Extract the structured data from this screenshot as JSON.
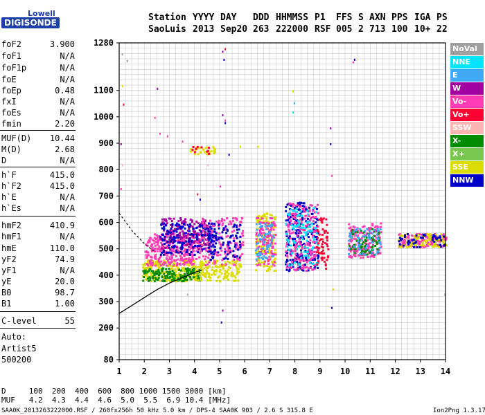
{
  "logo": {
    "top": "Lowell",
    "bottom": "DIGISONDE"
  },
  "header": {
    "row1": [
      "Station",
      "YYYY",
      "DAY",
      "DDD",
      "HHMMSS",
      "P1",
      "FFS",
      "S",
      "AXN",
      "PPS",
      "IGA",
      "PS"
    ],
    "row2": [
      "SaoLuis",
      "2013",
      "Sep20",
      "263",
      "222000",
      "RSF",
      "005",
      "2",
      "713",
      "100",
      "10+",
      "22"
    ]
  },
  "params": {
    "group1": [
      {
        "name": "foF2",
        "value": "3.900"
      },
      {
        "name": "foF1",
        "value": "N/A"
      },
      {
        "name": "foF1p",
        "value": "N/A"
      },
      {
        "name": "foE",
        "value": "N/A"
      },
      {
        "name": "foEp",
        "value": "0.48"
      },
      {
        "name": "fxI",
        "value": "N/A"
      },
      {
        "name": "foEs",
        "value": "N/A"
      },
      {
        "name": "fmin",
        "value": "2.20"
      }
    ],
    "group2": [
      {
        "name": "MUF(D)",
        "value": "10.44"
      },
      {
        "name": "M(D)",
        "value": "2.68"
      },
      {
        "name": "D",
        "value": "N/A"
      }
    ],
    "group3": [
      {
        "name": "h`F",
        "value": "415.0"
      },
      {
        "name": "h`F2",
        "value": "415.0"
      },
      {
        "name": "h`E",
        "value": "N/A"
      },
      {
        "name": "h`Es",
        "value": "N/A"
      }
    ],
    "group4": [
      {
        "name": "hmF2",
        "value": "410.9"
      },
      {
        "name": "hmF1",
        "value": "N/A"
      },
      {
        "name": "hmE",
        "value": "110.0"
      },
      {
        "name": "yF2",
        "value": "74.9"
      },
      {
        "name": "yF1",
        "value": "N/A"
      },
      {
        "name": "yE",
        "value": "20.0"
      },
      {
        "name": "B0",
        "value": "98.7"
      },
      {
        "name": "B1",
        "value": "1.00"
      }
    ],
    "clevel": {
      "name": "C-level",
      "value": "55"
    },
    "auto": [
      "Auto:",
      "Artist5",
      "500200"
    ]
  },
  "legend": [
    {
      "label": "NoVal",
      "color": "#a0a0a0"
    },
    {
      "label": "NNE",
      "color": "#00e5ff"
    },
    {
      "label": "E",
      "color": "#3fa9f5"
    },
    {
      "label": "W",
      "color": "#a000a0"
    },
    {
      "label": "Vo-",
      "color": "#ff3cb4"
    },
    {
      "label": "Vo+",
      "color": "#ff0032"
    },
    {
      "label": "SSW",
      "color": "#ffb4b4"
    },
    {
      "label": "X-",
      "color": "#008c00"
    },
    {
      "label": "X+",
      "color": "#78c850"
    },
    {
      "label": "SSE",
      "color": "#dcdc00"
    },
    {
      "label": "NNW",
      "color": "#0000c8"
    }
  ],
  "footer": {
    "d_row": "D     100  200  400  600  800 1000 1500 3000 [km]",
    "muf_row": "MUF   4.2  4.3  4.4  4.6  5.0  5.5  6.9 10.4 [MHz]",
    "file_info": "SAA0K_2013263222000.RSF / 260fx256h 50 kHz 5.0 km / DPS-4 SAA0K 903 / 2.6 S 315.8 E",
    "version": "Ion2Png 1.3.17"
  },
  "chart_data": {
    "type": "scatter",
    "xlim": [
      1,
      14
    ],
    "ylim": [
      80,
      1280
    ],
    "x_ticks": [
      1,
      2,
      3,
      4,
      5,
      6,
      7,
      8,
      9,
      10,
      11,
      12,
      13,
      14
    ],
    "y_ticks": [
      80,
      200,
      300,
      400,
      500,
      600,
      700,
      800,
      900,
      1000,
      1100,
      1280
    ],
    "grid": true,
    "legend_position": "right",
    "trace": [
      [
        1.0,
        255
      ],
      [
        1.5,
        285
      ],
      [
        2.0,
        315
      ],
      [
        2.5,
        345
      ],
      [
        3.0,
        370
      ],
      [
        3.5,
        390
      ],
      [
        4.0,
        410
      ],
      [
        4.3,
        420
      ]
    ],
    "dashed_trace": [
      [
        1.0,
        635
      ],
      [
        1.5,
        570
      ],
      [
        2.0,
        520
      ],
      [
        2.4,
        490
      ]
    ],
    "clusters": [
      {
        "x": [
          1.9,
          4.0
        ],
        "y": [
          380,
          460
        ],
        "color": "#dcdc00",
        "n": 260
      },
      {
        "x": [
          1.9,
          4.2
        ],
        "y": [
          380,
          430
        ],
        "color": "#008c00",
        "n": 140
      },
      {
        "x": [
          2.0,
          4.2
        ],
        "y": [
          440,
          560
        ],
        "color": "#ff3cb4",
        "n": 300
      },
      {
        "x": [
          2.6,
          4.6
        ],
        "y": [
          500,
          620
        ],
        "color": "#a000a0",
        "n": 200
      },
      {
        "x": [
          2.6,
          4.8
        ],
        "y": [
          480,
          600
        ],
        "color": "#0000c8",
        "n": 150
      },
      {
        "x": [
          4.0,
          5.8
        ],
        "y": [
          380,
          460
        ],
        "color": "#dcdc00",
        "n": 160
      },
      {
        "x": [
          4.2,
          5.9
        ],
        "y": [
          440,
          620
        ],
        "color": "#ff3cb4",
        "n": 170
      },
      {
        "x": [
          4.5,
          5.8
        ],
        "y": [
          460,
          600
        ],
        "color": "#0000c8",
        "n": 100
      },
      {
        "x": [
          6.4,
          7.2
        ],
        "y": [
          420,
          640
        ],
        "color": "#dcdc00",
        "n": 150
      },
      {
        "x": [
          6.4,
          7.2
        ],
        "y": [
          440,
          620
        ],
        "color": "#ff3cb4",
        "n": 120
      },
      {
        "x": [
          6.4,
          7.1
        ],
        "y": [
          460,
          600
        ],
        "color": "#3fa9f5",
        "n": 60
      },
      {
        "x": [
          7.6,
          8.9
        ],
        "y": [
          420,
          680
        ],
        "color": "#0000c8",
        "n": 240
      },
      {
        "x": [
          7.6,
          8.9
        ],
        "y": [
          420,
          680
        ],
        "color": "#ff3cb4",
        "n": 220
      },
      {
        "x": [
          7.6,
          8.9
        ],
        "y": [
          440,
          660
        ],
        "color": "#00e5ff",
        "n": 90
      },
      {
        "x": [
          8.8,
          9.3
        ],
        "y": [
          420,
          620
        ],
        "color": "#ff0032",
        "n": 60
      },
      {
        "x": [
          10.1,
          11.4
        ],
        "y": [
          470,
          600
        ],
        "color": "#ff3cb4",
        "n": 160
      },
      {
        "x": [
          10.1,
          11.4
        ],
        "y": [
          480,
          580
        ],
        "color": "#008c00",
        "n": 70
      },
      {
        "x": [
          10.1,
          11.4
        ],
        "y": [
          480,
          580
        ],
        "color": "#3fa9f5",
        "n": 60
      },
      {
        "x": [
          12.1,
          14.0
        ],
        "y": [
          510,
          560
        ],
        "color": "#ff3cb4",
        "n": 160
      },
      {
        "x": [
          12.1,
          14.0
        ],
        "y": [
          510,
          560
        ],
        "color": "#dcdc00",
        "n": 90
      },
      {
        "x": [
          12.1,
          14.0
        ],
        "y": [
          510,
          560
        ],
        "color": "#0000c8",
        "n": 50
      },
      {
        "x": [
          3.8,
          4.8
        ],
        "y": [
          860,
          890
        ],
        "color": "#dcdc00",
        "n": 28
      },
      {
        "x": [
          3.8,
          4.8
        ],
        "y": [
          860,
          890
        ],
        "color": "#ff0032",
        "n": 10
      }
    ],
    "scattered": [
      [
        1.1,
        1240,
        "#a0a0a0"
      ],
      [
        1.3,
        1215,
        "#a0a0a0"
      ],
      [
        1.1,
        1120,
        "#dcdc00"
      ],
      [
        1.15,
        1050,
        "#ff0032"
      ],
      [
        1.05,
        900,
        "#a000a0"
      ],
      [
        1.1,
        820,
        "#ffb4b4"
      ],
      [
        1.05,
        730,
        "#ff3cb4"
      ],
      [
        2.5,
        1110,
        "#a000a0"
      ],
      [
        2.6,
        940,
        "#ff3cb4"
      ],
      [
        2.9,
        930,
        "#ff3cb4"
      ],
      [
        3.5,
        910,
        "#ff3cb4"
      ],
      [
        5.1,
        1250,
        "#a000a0"
      ],
      [
        5.2,
        1260,
        "#ff0032"
      ],
      [
        5.15,
        1220,
        "#0000c8"
      ],
      [
        5.1,
        1010,
        "#a000a0"
      ],
      [
        5.2,
        990,
        "#ff3cb4"
      ],
      [
        5.2,
        980,
        "#0000c8"
      ],
      [
        5.35,
        860,
        "#0000c8"
      ],
      [
        5.1,
        270,
        "#a000a0"
      ],
      [
        5.05,
        225,
        "#0000c8"
      ],
      [
        5.0,
        740,
        "#ff3cb4"
      ],
      [
        7.9,
        1100,
        "#dcdc00"
      ],
      [
        7.95,
        1055,
        "#3fa9f5"
      ],
      [
        7.9,
        1020,
        "#00e5ff"
      ],
      [
        9.4,
        960,
        "#a000a0"
      ],
      [
        9.4,
        900,
        "#0000c8"
      ],
      [
        9.45,
        780,
        "#ff3cb4"
      ],
      [
        9.45,
        280,
        "#0000c8"
      ],
      [
        10.35,
        1220,
        "#0000c8"
      ],
      [
        10.3,
        1210,
        "#ff3cb4"
      ],
      [
        9.5,
        350,
        "#dcdc00"
      ],
      [
        13.95,
        330,
        "#a0a0a0"
      ],
      [
        4.1,
        710,
        "#ff0032"
      ],
      [
        4.2,
        690,
        "#0000c8"
      ],
      [
        5.8,
        890,
        "#dcdc00"
      ],
      [
        6.5,
        890,
        "#dcdc00"
      ],
      [
        4.5,
        820,
        "#ffb4b4"
      ],
      [
        2.4,
        1000,
        "#ff3cb4"
      ],
      [
        3.7,
        330,
        "#a0a0a0"
      ]
    ]
  }
}
